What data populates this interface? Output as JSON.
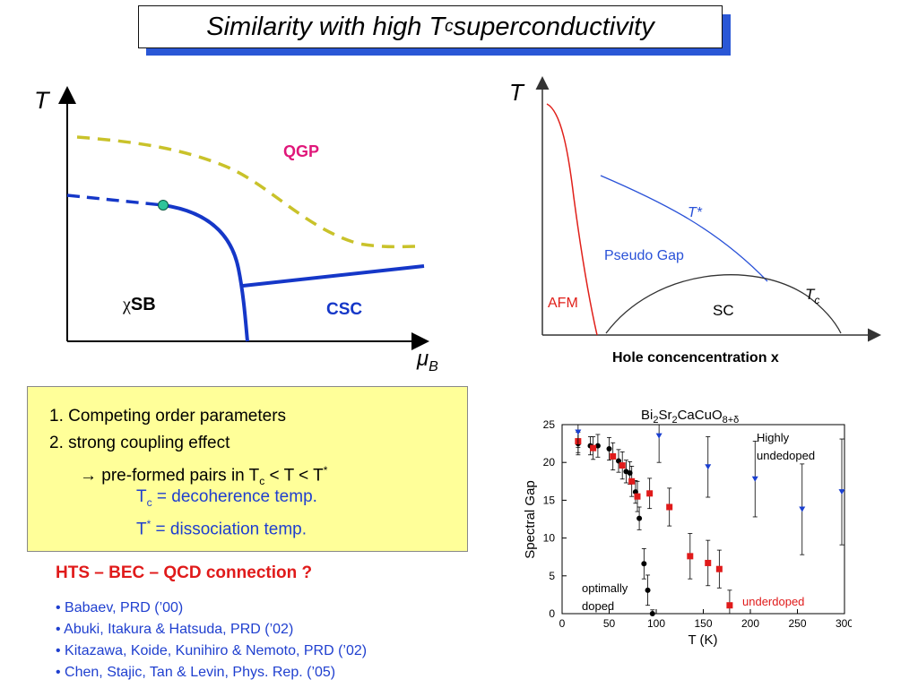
{
  "slide": {
    "title": {
      "prefix": "Similarity with high T",
      "sub": "c",
      "suffix": " superconductivity"
    }
  },
  "qcd_diagram": {
    "y_axis_label": "T",
    "x_axis_label": "μ",
    "x_axis_label_sub": "B",
    "regions": {
      "qgp": "QGP",
      "chisb_symbol": "χ",
      "chisb_text": "SB",
      "csc": "CSC"
    },
    "colors": {
      "transition": "#1537c8",
      "crossover": "#c9c22a",
      "critical_point": "#2ec49a",
      "qgp_text": "#e0177a",
      "csc_text": "#1537c8"
    }
  },
  "cuprate_diagram": {
    "y_axis_label": "T",
    "x_axis_label": "Hole concencentration x",
    "regions": {
      "afm": "AFM",
      "pseudo_gap": "Pseudo Gap",
      "t_star": "T*",
      "sc": "SC",
      "tc_main": "T",
      "tc_sub": "c"
    },
    "colors": {
      "afm": "#e0201a",
      "t_star": "#2a52d8",
      "sc_dome": "#333333"
    }
  },
  "notes": {
    "item1": "1. Competing order parameters",
    "item2": "2. strong coupling effect",
    "item3_prefix": "→ pre-formed pairs in T",
    "item3_sub": "c",
    "item3_mid": " < T < T",
    "item3_sup": "*",
    "tc_main": "T",
    "tc_sub": "c",
    "tc_rest": " = decoherence temp.",
    "ts_main": "T",
    "ts_sup": "*",
    "ts_rest": " = dissociation temp."
  },
  "connection": {
    "heading": "HTS – BEC – QCD connection ?",
    "refs": [
      "• Babaev, PRD  (’00)",
      "• Abuki, Itakura & Hatsuda, PRD (’02)",
      "• Kitazawa, Koide, Kunihiro & Nemoto, PRD (’02)",
      "• Chen, Stajic, Tan & Levin, Phys. Rep. (’05)"
    ]
  },
  "chart_data": {
    "type": "scatter",
    "title_parts": [
      "Bi",
      "2",
      "Sr",
      "2",
      "CaCuO",
      "8+δ"
    ],
    "xlabel": "T (K)",
    "ylabel": "Spectral Gap",
    "xlim": [
      0,
      300
    ],
    "ylim": [
      0,
      25
    ],
    "x_ticks": [
      0,
      50,
      100,
      150,
      200,
      250,
      300
    ],
    "y_ticks": [
      0,
      5,
      10,
      15,
      20,
      25
    ],
    "annotations": {
      "highly": "Highly",
      "undedoped": "undedoped",
      "optimally": "optimally",
      "doped": "doped",
      "underdoped": "underdoped"
    },
    "series": [
      {
        "name": "optimally doped",
        "marker": "circle",
        "color": "#000000",
        "points": [
          {
            "x": 17,
            "y": 22.5,
            "err": 1.5
          },
          {
            "x": 30,
            "y": 22.2,
            "err": 1.2
          },
          {
            "x": 38,
            "y": 22.2,
            "err": 1.5
          },
          {
            "x": 50,
            "y": 21.8,
            "err": 1.5
          },
          {
            "x": 60,
            "y": 20.2,
            "err": 1.5
          },
          {
            "x": 68,
            "y": 18.8,
            "err": 1.5
          },
          {
            "x": 72,
            "y": 18.6,
            "err": 1.5
          },
          {
            "x": 78,
            "y": 16.1,
            "err": 1.5
          },
          {
            "x": 82,
            "y": 12.6,
            "err": 1.5
          },
          {
            "x": 87,
            "y": 6.6,
            "err": 2.0
          },
          {
            "x": 91,
            "y": 3.1,
            "err": 2.0
          },
          {
            "x": 96,
            "y": 0.0,
            "err": 0.5
          }
        ]
      },
      {
        "name": "underdoped",
        "marker": "square",
        "color": "#e01a1a",
        "points": [
          {
            "x": 17,
            "y": 22.8,
            "err": 1.5
          },
          {
            "x": 33,
            "y": 21.9,
            "err": 1.5
          },
          {
            "x": 54,
            "y": 20.8,
            "err": 1.8
          },
          {
            "x": 64,
            "y": 19.6,
            "err": 1.8
          },
          {
            "x": 74,
            "y": 17.5,
            "err": 2.0
          },
          {
            "x": 80,
            "y": 15.5,
            "err": 2.0
          },
          {
            "x": 93,
            "y": 15.9,
            "err": 2.0
          },
          {
            "x": 114,
            "y": 14.1,
            "err": 2.5
          },
          {
            "x": 136,
            "y": 7.6,
            "err": 3.0
          },
          {
            "x": 155,
            "y": 6.7,
            "err": 3.0
          },
          {
            "x": 167,
            "y": 5.9,
            "err": 2.5
          },
          {
            "x": 178,
            "y": 1.1,
            "err": 2.0
          }
        ]
      },
      {
        "name": "highly underdoped",
        "marker": "triangle",
        "color": "#1a3fd0",
        "points": [
          {
            "x": 17,
            "y": 24.0,
            "err": 2.0
          },
          {
            "x": 103,
            "y": 23.5,
            "err": 3.5
          },
          {
            "x": 155,
            "y": 19.4,
            "err": 4.0
          },
          {
            "x": 205,
            "y": 17.8,
            "err": 5.0
          },
          {
            "x": 255,
            "y": 13.8,
            "err": 6.0
          },
          {
            "x": 305,
            "y": 16.1,
            "err": 7.0
          }
        ]
      }
    ]
  }
}
